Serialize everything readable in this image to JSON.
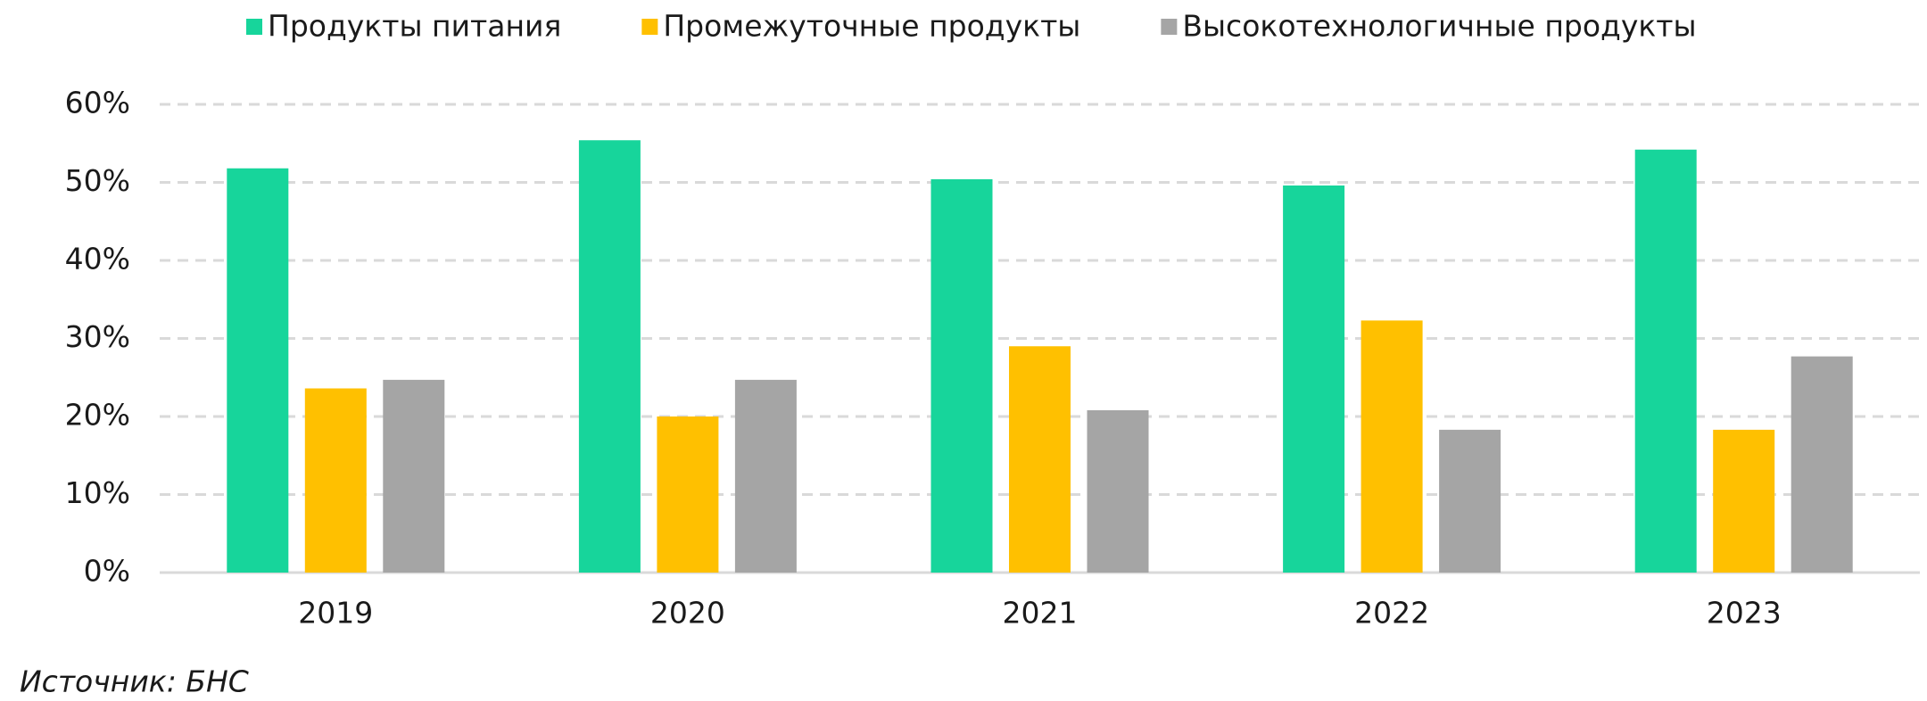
{
  "chart_data": {
    "type": "bar",
    "categories": [
      "2019",
      "2020",
      "2021",
      "2022",
      "2023"
    ],
    "series": [
      {
        "name": "Продукты питания",
        "color": "#17d59b",
        "values": [
          51.8,
          55.4,
          50.4,
          49.6,
          54.2
        ]
      },
      {
        "name": "Промежуточные продукты",
        "color": "#ffc000",
        "values": [
          23.6,
          20.0,
          29.0,
          32.3,
          18.3
        ]
      },
      {
        "name": "Высокотехнологичные продукты",
        "color": "#a5a5a5",
        "values": [
          24.7,
          24.7,
          20.8,
          18.3,
          27.7
        ]
      }
    ],
    "ylim": [
      0,
      60
    ],
    "yticks": [
      {
        "value": 0,
        "label": "0%"
      },
      {
        "value": 10,
        "label": "10%"
      },
      {
        "value": 20,
        "label": "20%"
      },
      {
        "value": 30,
        "label": "30%"
      },
      {
        "value": 40,
        "label": "40%"
      },
      {
        "value": 50,
        "label": "50%"
      },
      {
        "value": 60,
        "label": "60%"
      }
    ],
    "grid": true,
    "legend": "top",
    "source": "Источник: БНС"
  }
}
